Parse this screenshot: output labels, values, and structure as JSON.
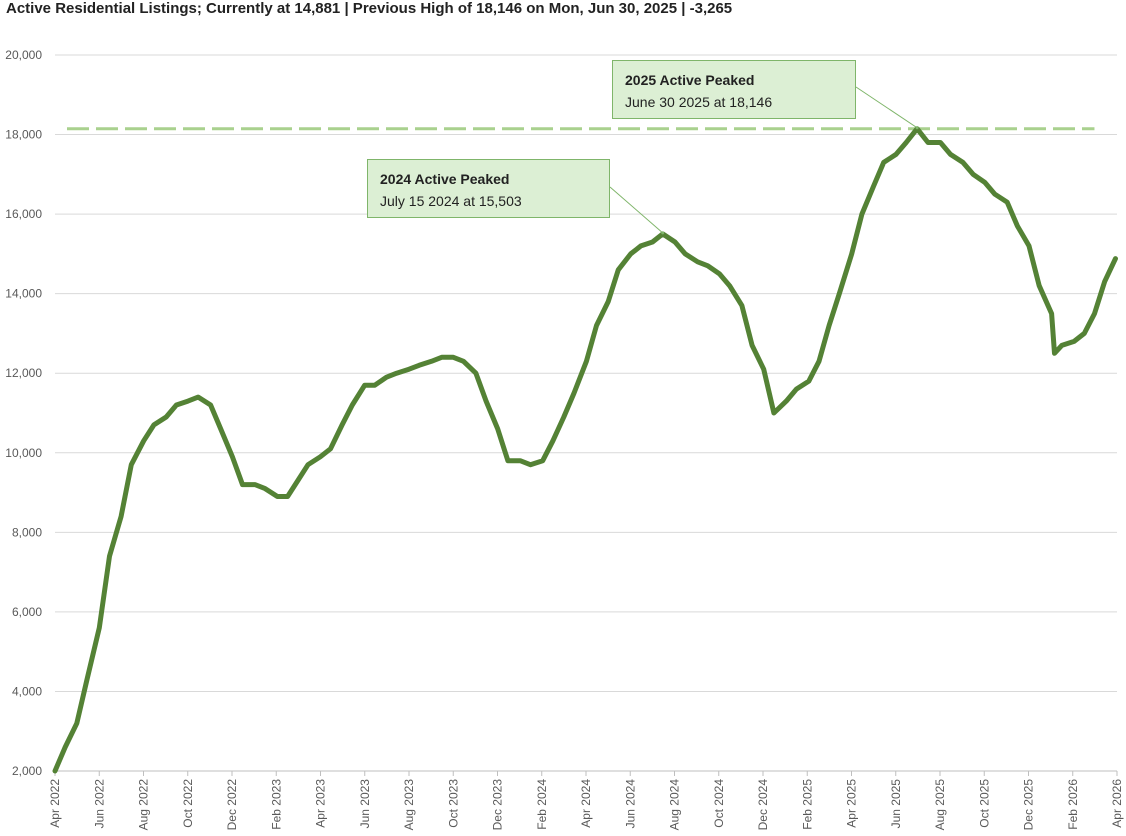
{
  "chart_data": {
    "type": "line",
    "title": "Active Residential Listings; Currently at 14,881 | Previous High of 18,146 on Mon, Jun 30, 2025 | -3,265",
    "xlabel": "",
    "ylabel": "",
    "ylim": [
      2000,
      20000
    ],
    "yticks": [
      2000,
      4000,
      6000,
      8000,
      10000,
      12000,
      14000,
      16000,
      18000,
      20000
    ],
    "ytick_labels": [
      "2,000",
      "4,000",
      "6,000",
      "8,000",
      "10,000",
      "12,000",
      "14,000",
      "16,000",
      "18,000",
      "20,000"
    ],
    "xlim": [
      "2022-04-01",
      "2026-04-01"
    ],
    "xtick_labels": [
      "Apr 2022",
      "Jun 2022",
      "Aug 2022",
      "Oct 2022",
      "Dec 2022",
      "Feb 2023",
      "Apr 2023",
      "Jun 2023",
      "Aug 2023",
      "Oct 2023",
      "Dec 2023",
      "Feb 2024",
      "Apr 2024",
      "Jun 2024",
      "Aug 2024",
      "Oct 2024",
      "Dec 2024",
      "Feb 2025",
      "Apr 2025",
      "Jun 2025",
      "Aug 2025",
      "Oct 2025",
      "Dec 2025",
      "Feb 2026",
      "Apr 2026"
    ],
    "grid": "horizontal",
    "line_color": "#548235",
    "reference_line": {
      "value": 18146,
      "color": "#a9d18e",
      "style": "dashed",
      "x_end": "2026-03-01"
    },
    "series": [
      {
        "x": [
          "2022-04-01",
          "2022-04-15",
          "2022-05-01",
          "2022-05-15",
          "2022-06-01",
          "2022-06-15",
          "2022-07-01",
          "2022-07-15",
          "2022-08-01",
          "2022-08-15",
          "2022-09-01",
          "2022-09-15",
          "2022-10-01",
          "2022-10-15",
          "2022-11-01",
          "2022-11-15",
          "2022-12-01",
          "2022-12-15",
          "2023-01-01",
          "2023-01-15",
          "2023-02-01",
          "2023-02-15",
          "2023-03-01",
          "2023-03-15",
          "2023-04-01",
          "2023-04-15",
          "2023-05-01",
          "2023-05-15",
          "2023-06-01",
          "2023-06-15",
          "2023-07-01",
          "2023-07-15",
          "2023-08-01",
          "2023-08-15",
          "2023-09-01",
          "2023-09-15",
          "2023-10-01",
          "2023-10-15",
          "2023-11-01",
          "2023-11-15",
          "2023-12-01",
          "2023-12-15",
          "2024-01-01",
          "2024-01-15",
          "2024-02-01",
          "2024-02-15",
          "2024-03-01",
          "2024-03-15",
          "2024-04-01",
          "2024-04-15",
          "2024-05-01",
          "2024-05-15",
          "2024-06-01",
          "2024-06-15",
          "2024-07-01",
          "2024-07-15",
          "2024-08-01",
          "2024-08-15",
          "2024-09-01",
          "2024-09-15",
          "2024-10-01",
          "2024-10-15",
          "2024-11-01",
          "2024-11-15",
          "2024-12-01",
          "2024-12-15",
          "2025-01-01",
          "2025-01-15",
          "2025-02-01",
          "2025-02-15",
          "2025-03-01",
          "2025-03-15",
          "2025-04-01",
          "2025-04-15",
          "2025-05-01",
          "2025-05-15",
          "2025-06-01",
          "2025-06-15",
          "2025-06-30",
          "2025-07-15",
          "2025-08-01",
          "2025-08-15",
          "2025-09-01",
          "2025-09-15",
          "2025-10-01",
          "2025-10-15",
          "2025-11-01",
          "2025-11-15",
          "2025-12-01",
          "2025-12-15",
          "2026-01-01",
          "2026-01-05",
          "2026-01-15",
          "2026-02-01",
          "2026-02-15",
          "2026-03-01",
          "2026-03-15",
          "2026-03-30"
        ],
        "values": [
          2000,
          2600,
          3200,
          4300,
          5600,
          7400,
          8400,
          9700,
          10300,
          10700,
          10900,
          11200,
          11300,
          11400,
          11200,
          10600,
          9900,
          9200,
          9200,
          9100,
          8900,
          8900,
          9300,
          9700,
          9900,
          10100,
          10700,
          11200,
          11700,
          11700,
          11900,
          12000,
          12100,
          12200,
          12300,
          12400,
          12400,
          12300,
          12000,
          11300,
          10600,
          9800,
          9800,
          9700,
          9800,
          10300,
          10900,
          11500,
          12300,
          13200,
          13800,
          14600,
          15000,
          15200,
          15300,
          15503,
          15300,
          15000,
          14800,
          14700,
          14500,
          14200,
          13700,
          12700,
          12100,
          11000,
          11300,
          11600,
          11800,
          12300,
          13200,
          14000,
          15000,
          16000,
          16700,
          17300,
          17500,
          17800,
          18146,
          17800,
          17800,
          17500,
          17300,
          17000,
          16800,
          16500,
          16300,
          15700,
          15200,
          14200,
          13500,
          12500,
          12700,
          12800,
          13000,
          13500,
          14300,
          14881
        ]
      }
    ],
    "annotations": [
      {
        "head": "2025 Active Peaked",
        "text": "June 30 2025 at 18,146",
        "x": "2025-06-30",
        "y": 18146
      },
      {
        "head": "2024 Active Peaked",
        "text": "July 15 2024 at 15,503",
        "x": "2024-07-15",
        "y": 15503
      }
    ]
  }
}
